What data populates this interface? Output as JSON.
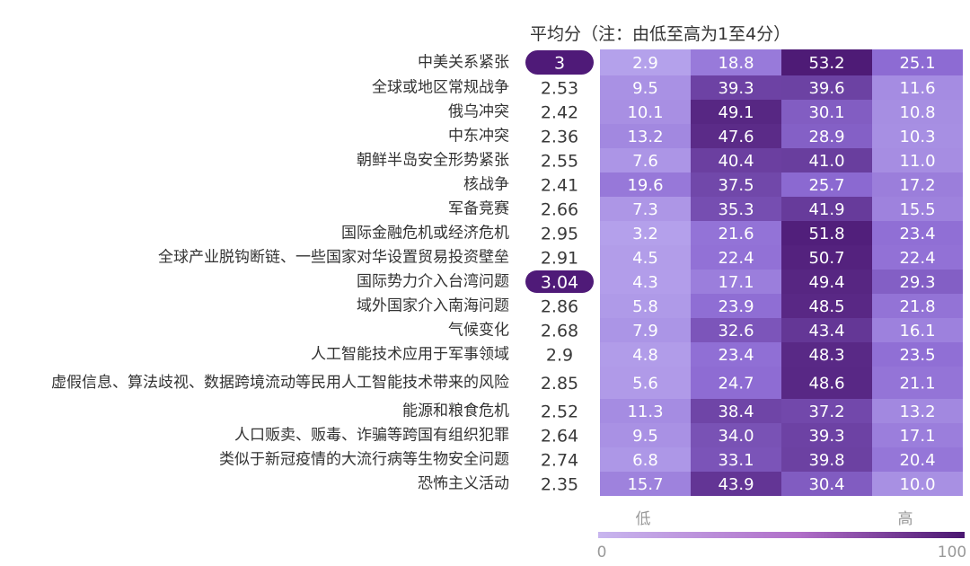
{
  "chart_data": {
    "type": "heatmap",
    "header": "平均分（注：由低至高为1至4分）",
    "rows": [
      {
        "label": "中美关系紧张",
        "avg": "3",
        "values": [
          "2.9",
          "18.8",
          "53.2",
          "25.1"
        ],
        "highlight": true
      },
      {
        "label": "全球或地区常规战争",
        "avg": "2.53",
        "values": [
          "9.5",
          "39.3",
          "39.6",
          "11.6"
        ]
      },
      {
        "label": "俄乌冲突",
        "avg": "2.42",
        "values": [
          "10.1",
          "49.1",
          "30.1",
          "10.8"
        ]
      },
      {
        "label": "中东冲突",
        "avg": "2.36",
        "values": [
          "13.2",
          "47.6",
          "28.9",
          "10.3"
        ]
      },
      {
        "label": "朝鲜半岛安全形势紧张",
        "avg": "2.55",
        "values": [
          "7.6",
          "40.4",
          "41.0",
          "11.0"
        ]
      },
      {
        "label": "核战争",
        "avg": "2.41",
        "values": [
          "19.6",
          "37.5",
          "25.7",
          "17.2"
        ]
      },
      {
        "label": "军备竞赛",
        "avg": "2.66",
        "values": [
          "7.3",
          "35.3",
          "41.9",
          "15.5"
        ]
      },
      {
        "label": "国际金融危机或经济危机",
        "avg": "2.95",
        "values": [
          "3.2",
          "21.6",
          "51.8",
          "23.4"
        ]
      },
      {
        "label": "全球产业脱钩断链、一些国家对华设置贸易投资壁垒",
        "avg": "2.91",
        "values": [
          "4.5",
          "22.4",
          "50.7",
          "22.4"
        ]
      },
      {
        "label": "国际势力介入台湾问题",
        "avg": "3.04",
        "values": [
          "4.3",
          "17.1",
          "49.4",
          "29.3"
        ],
        "highlight": true
      },
      {
        "label": "域外国家介入南海问题",
        "avg": "2.86",
        "values": [
          "5.8",
          "23.9",
          "48.5",
          "21.8"
        ]
      },
      {
        "label": "气候变化",
        "avg": "2.68",
        "values": [
          "7.9",
          "32.6",
          "43.4",
          "16.1"
        ]
      },
      {
        "label": "人工智能技术应用于军事领域",
        "avg": "2.9",
        "values": [
          "4.8",
          "23.4",
          "48.3",
          "23.5"
        ]
      },
      {
        "label": "虚假信息、算法歧视、数据跨境流动等民用人工智能技术带来的风险",
        "avg": "2.85",
        "values": [
          "5.6",
          "24.7",
          "48.6",
          "21.1"
        ]
      },
      {
        "label": "能源和粮食危机",
        "avg": "2.52",
        "values": [
          "11.3",
          "38.4",
          "37.2",
          "13.2"
        ]
      },
      {
        "label": "人口贩卖、贩毒、诈骗等跨国有组织犯罪",
        "avg": "2.64",
        "values": [
          "9.5",
          "34.0",
          "39.3",
          "17.1"
        ]
      },
      {
        "label": "类似于新冠疫情的大流行病等生物安全问题",
        "avg": "2.74",
        "values": [
          "6.8",
          "33.1",
          "39.8",
          "20.4"
        ]
      },
      {
        "label": "恐怖主义活动",
        "avg": "2.35",
        "values": [
          "15.7",
          "43.9",
          "30.4",
          "10.0"
        ]
      }
    ],
    "legend": {
      "low_label": "低",
      "high_label": "高",
      "min": "0",
      "max": "100"
    },
    "colors": {
      "low": "#b6a3ec",
      "mid": "#8d6bd3",
      "high": "#4a1670",
      "highlight_pill": "#4f1a78",
      "legend_start": "#c8b6ef",
      "legend_mid": "#b06ec8",
      "legend_end": "#4a1670"
    }
  }
}
